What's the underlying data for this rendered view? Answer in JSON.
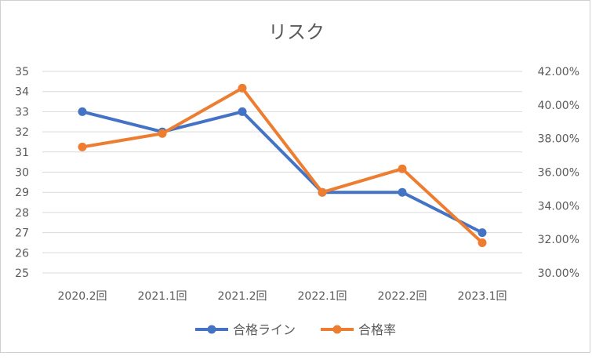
{
  "chart_data": {
    "type": "line",
    "title": "リスク",
    "categories": [
      "2020.2回",
      "2021.1回",
      "2021.2回",
      "2022.1回",
      "2022.2回",
      "2023.1回"
    ],
    "series": [
      {
        "name": "合格ライン",
        "axis": "left",
        "color": "#4472c4",
        "values": [
          33,
          32,
          33,
          29,
          29,
          27
        ]
      },
      {
        "name": "合格率",
        "axis": "right",
        "color": "#ed7d31",
        "values": [
          0.375,
          0.383,
          0.41,
          0.348,
          0.362,
          0.318
        ]
      }
    ],
    "y_left": {
      "min": 25,
      "max": 35,
      "step": 1,
      "ticks": [
        "25",
        "26",
        "27",
        "28",
        "29",
        "30",
        "31",
        "32",
        "33",
        "34",
        "35"
      ]
    },
    "y_right": {
      "min": 0.3,
      "max": 0.42,
      "step": 0.02,
      "ticks": [
        "30.00%",
        "32.00%",
        "34.00%",
        "36.00%",
        "38.00%",
        "40.00%",
        "42.00%"
      ]
    },
    "grid": true,
    "legend_position": "bottom"
  }
}
